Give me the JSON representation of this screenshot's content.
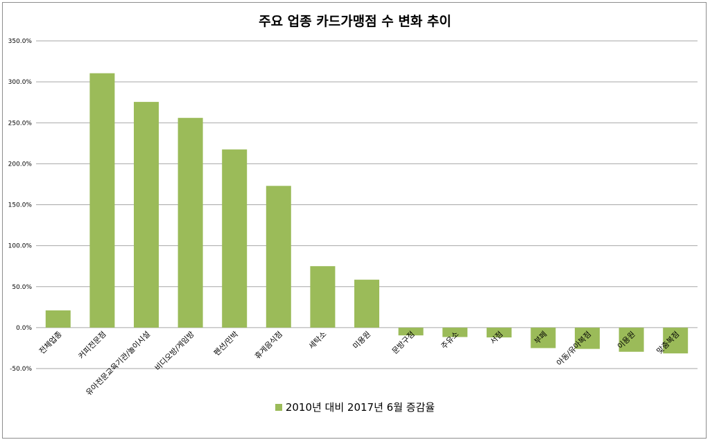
{
  "chart_data": {
    "type": "bar",
    "title": "주요 업종 카드가맹점 수 변화 추이",
    "categories": [
      "전체업종",
      "커피전문점",
      "유아전문교육기관/놀이시설",
      "비디오방/게임방",
      "펜션/민박",
      "휴게음식점",
      "세탁소",
      "미용원",
      "문방구점",
      "주유소",
      "서점",
      "부페",
      "아동/유아복점",
      "이용원",
      "맞춤복점"
    ],
    "series": [
      {
        "name": "2010년 대비 2017년 6월 증감율",
        "values": [
          21.0,
          310.5,
          275.5,
          256.0,
          217.5,
          173.0,
          75.0,
          58.5,
          -9.5,
          -11.5,
          -12.0,
          -25.0,
          -26.0,
          -29.5,
          -31.5
        ]
      }
    ],
    "ylim": [
      -50,
      350
    ],
    "yticks": [
      "350.0%",
      "300.0%",
      "250.0%",
      "200.0%",
      "150.0%",
      "100.0%",
      "50.0%",
      "0.0%",
      "-50.0%"
    ],
    "grid": true,
    "legend_position": "bottom",
    "bar_color": "#9bbb59"
  }
}
